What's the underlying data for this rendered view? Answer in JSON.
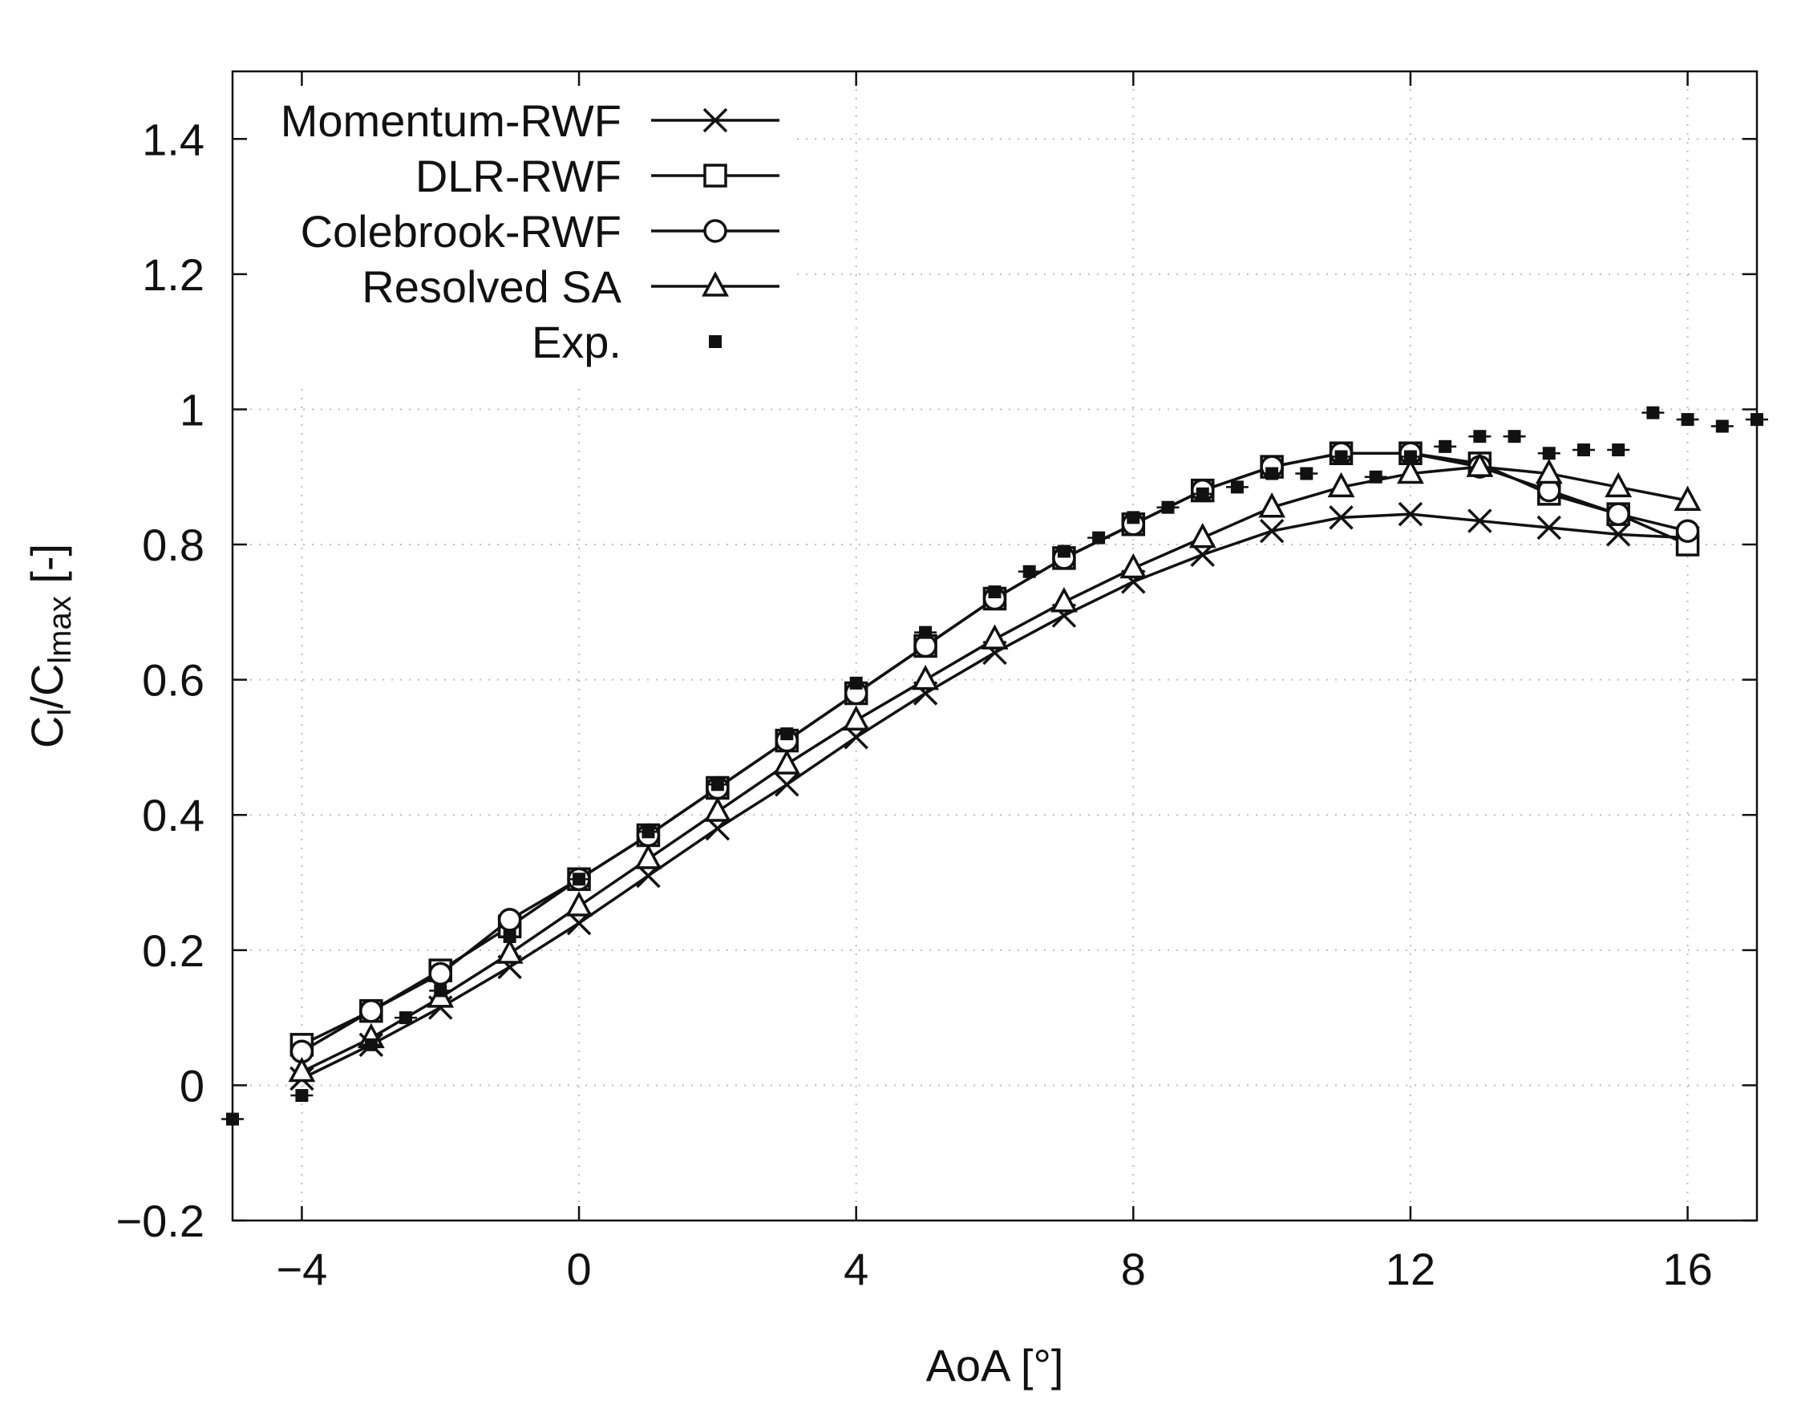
{
  "chart_data": {
    "type": "line",
    "xlabel": "AoA [°]",
    "ylabel": {
      "main": "C",
      "sub1": "l",
      "mid": "/C",
      "sub2": "lmax",
      "end": " [-]"
    },
    "xlim": [
      -5,
      17
    ],
    "ylim": [
      -0.2,
      1.5
    ],
    "x_ticks": [
      -4,
      0,
      4,
      8,
      12,
      16
    ],
    "x_tick_labels": [
      "−4",
      "0",
      "4",
      "8",
      "12",
      "16"
    ],
    "y_ticks": [
      -0.2,
      0,
      0.2,
      0.4,
      0.6,
      0.8,
      1,
      1.2,
      1.4
    ],
    "y_tick_labels": [
      "−0.2",
      "0",
      "0.2",
      "0.4",
      "0.6",
      "0.8",
      "1",
      "1.2",
      "1.4"
    ],
    "grid": true,
    "legend_position": "top-left",
    "series": [
      {
        "name": "Momentum-RWF",
        "marker": "x",
        "x": [
          -4,
          -3,
          -2,
          -1,
          0,
          1,
          2,
          3,
          4,
          5,
          6,
          7,
          8,
          9,
          10,
          11,
          12,
          13,
          14,
          15,
          16
        ],
        "y": [
          0.01,
          0.06,
          0.115,
          0.175,
          0.24,
          0.31,
          0.38,
          0.445,
          0.515,
          0.58,
          0.64,
          0.695,
          0.745,
          0.785,
          0.82,
          0.84,
          0.845,
          0.835,
          0.825,
          0.815,
          0.81
        ]
      },
      {
        "name": "DLR-RWF",
        "marker": "square",
        "x": [
          -4,
          -3,
          -2,
          -1,
          0,
          1,
          2,
          3,
          4,
          5,
          6,
          7,
          8,
          9,
          10,
          11,
          12,
          13,
          14,
          15,
          16
        ],
        "y": [
          0.06,
          0.11,
          0.17,
          0.235,
          0.305,
          0.37,
          0.44,
          0.51,
          0.58,
          0.65,
          0.72,
          0.78,
          0.83,
          0.88,
          0.915,
          0.935,
          0.935,
          0.92,
          0.875,
          0.845,
          0.8
        ]
      },
      {
        "name": "Colebrook-RWF",
        "marker": "circle",
        "x": [
          -4,
          -3,
          -2,
          -1,
          0,
          1,
          2,
          3,
          4,
          5,
          6,
          7,
          8,
          9,
          10,
          11,
          12,
          13,
          14,
          15,
          16
        ],
        "y": [
          0.05,
          0.11,
          0.165,
          0.245,
          0.305,
          0.37,
          0.44,
          0.51,
          0.58,
          0.65,
          0.72,
          0.78,
          0.83,
          0.88,
          0.915,
          0.935,
          0.935,
          0.915,
          0.88,
          0.845,
          0.82
        ]
      },
      {
        "name": "Resolved SA",
        "marker": "triangle",
        "x": [
          -4,
          -3,
          -2,
          -1,
          0,
          1,
          2,
          3,
          4,
          5,
          6,
          7,
          8,
          9,
          10,
          11,
          12,
          13,
          14,
          15,
          16
        ],
        "y": [
          0.02,
          0.07,
          0.13,
          0.195,
          0.265,
          0.335,
          0.405,
          0.475,
          0.54,
          0.6,
          0.66,
          0.715,
          0.765,
          0.81,
          0.855,
          0.885,
          0.905,
          0.915,
          0.905,
          0.885,
          0.865
        ]
      },
      {
        "name": "Exp.",
        "marker": "filled-square",
        "x": [
          -5,
          -4,
          -3,
          -2.5,
          -2,
          -1,
          0,
          1,
          2,
          3,
          4,
          5,
          6,
          6.5,
          7,
          7.5,
          8,
          8.5,
          9,
          9.5,
          10,
          10.5,
          11,
          11.5,
          12,
          12.5,
          13,
          13.5,
          14,
          14.5,
          15,
          15.5,
          16,
          16.5,
          17
        ],
        "y": [
          -0.05,
          -0.015,
          0.06,
          0.1,
          0.14,
          0.22,
          0.305,
          0.375,
          0.445,
          0.52,
          0.595,
          0.67,
          0.73,
          0.76,
          0.79,
          0.81,
          0.84,
          0.855,
          0.875,
          0.885,
          0.905,
          0.905,
          0.93,
          0.9,
          0.93,
          0.945,
          0.96,
          0.96,
          0.935,
          0.94,
          0.94,
          0.995,
          0.985,
          0.975,
          0.985
        ]
      }
    ]
  }
}
